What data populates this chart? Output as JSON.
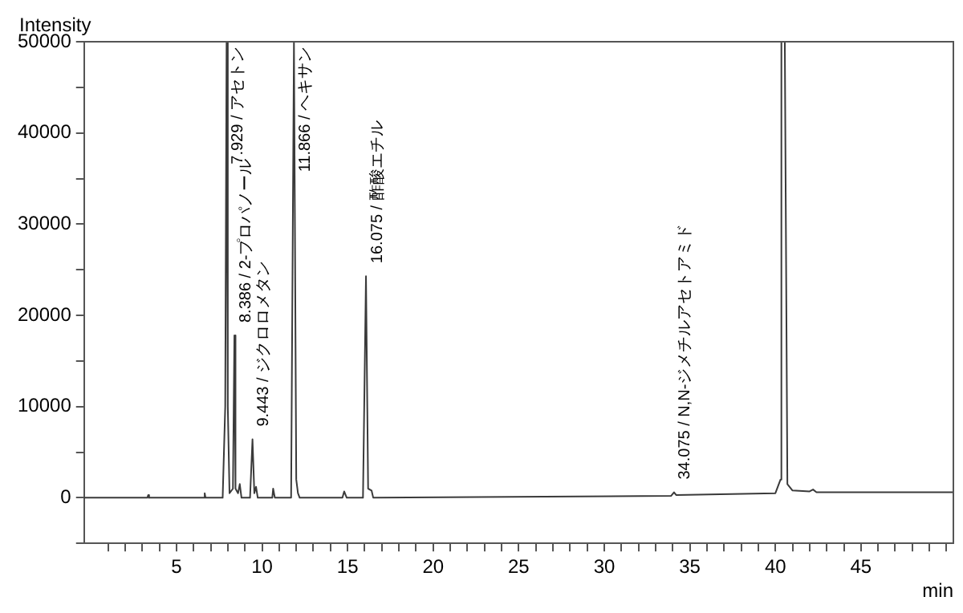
{
  "chart_data": {
    "type": "line",
    "xlabel": "min",
    "ylabel": "Intensity",
    "xlim": [
      -0.4,
      50.4
    ],
    "ylim": [
      -5000,
      50000
    ],
    "xticks": [
      {
        "value": 1,
        "label": null
      },
      {
        "value": 2,
        "label": null
      },
      {
        "value": 3,
        "label": null
      },
      {
        "value": 4,
        "label": null
      },
      5,
      {
        "value": 6,
        "label": null
      },
      {
        "value": 7,
        "label": null
      },
      {
        "value": 8,
        "label": null
      },
      {
        "value": 9,
        "label": null
      },
      10,
      {
        "value": 11,
        "label": null
      },
      {
        "value": 12,
        "label": null
      },
      {
        "value": 13,
        "label": null
      },
      {
        "value": 14,
        "label": null
      },
      15,
      {
        "value": 16,
        "label": null
      },
      {
        "value": 17,
        "label": null
      },
      {
        "value": 18,
        "label": null
      },
      {
        "value": 19,
        "label": null
      },
      20,
      {
        "value": 21,
        "label": null
      },
      {
        "value": 22,
        "label": null
      },
      {
        "value": 23,
        "label": null
      },
      {
        "value": 24,
        "label": null
      },
      25,
      {
        "value": 26,
        "label": null
      },
      {
        "value": 27,
        "label": null
      },
      {
        "value": 28,
        "label": null
      },
      {
        "value": 29,
        "label": null
      },
      30,
      {
        "value": 31,
        "label": null
      },
      {
        "value": 32,
        "label": null
      },
      {
        "value": 33,
        "label": null
      },
      {
        "value": 34,
        "label": null
      },
      35,
      {
        "value": 36,
        "label": null
      },
      {
        "value": 37,
        "label": null
      },
      {
        "value": 38,
        "label": null
      },
      {
        "value": 39,
        "label": null
      },
      40,
      {
        "value": 41,
        "label": null
      },
      {
        "value": 42,
        "label": null
      },
      {
        "value": 43,
        "label": null
      },
      {
        "value": 44,
        "label": null
      },
      45,
      {
        "value": 46,
        "label": null
      },
      {
        "value": 47,
        "label": null
      },
      {
        "value": 48,
        "label": null
      },
      {
        "value": 49,
        "label": null
      },
      {
        "value": 50,
        "label": null
      }
    ],
    "yticks": [
      {
        "value": -5000,
        "label": null
      },
      0,
      {
        "value": 5000,
        "label": null
      },
      10000,
      {
        "value": 15000,
        "label": null
      },
      20000,
      {
        "value": 25000,
        "label": null
      },
      30000,
      {
        "value": 35000,
        "label": null
      },
      40000,
      {
        "value": 45000,
        "label": null
      },
      50000
    ],
    "grid": false,
    "legend": false,
    "marker": "none",
    "line_style": "solid",
    "series": [
      {
        "color": "#3a3a3a",
        "x": [
          -0.4,
          3.3,
          3.35,
          3.4,
          6.6,
          6.65,
          6.7,
          7.7,
          7.85,
          7.929,
          8.0,
          8.1,
          8.3,
          8.386,
          8.45,
          8.6,
          8.7,
          8.8,
          9.3,
          9.443,
          9.55,
          9.65,
          9.75,
          10.6,
          10.65,
          10.75,
          11.7,
          11.866,
          12.0,
          12.1,
          12.2,
          14.7,
          14.8,
          14.95,
          15.9,
          16.075,
          16.2,
          16.4,
          16.5,
          33.9,
          34.075,
          34.2,
          40.0,
          40.3,
          40.35,
          40.55,
          40.7,
          41.0,
          42.0,
          42.2,
          42.4,
          50.4
        ],
        "values": [
          0,
          0,
          300,
          0,
          0,
          500,
          0,
          0,
          10000,
          50000,
          10000,
          500,
          1000,
          17800,
          1000,
          500,
          1500,
          0,
          0,
          6400,
          500,
          1200,
          0,
          0,
          1000,
          0,
          0,
          50000,
          2000,
          500,
          0,
          0,
          700,
          0,
          0,
          24300,
          1000,
          800,
          0,
          200,
          600,
          300,
          500,
          2000,
          50000,
          50000,
          1500,
          800,
          700,
          900,
          600,
          600
        ]
      }
    ],
    "annotations": [
      {
        "text": "7.929 / アセトン",
        "x": 7.929,
        "y": 50000
      },
      {
        "text": "8.386 / 2-プロパノール",
        "x": 8.386,
        "y": 17800
      },
      {
        "text": "9.443 / ジクロロメタン",
        "x": 9.443,
        "y": 6400
      },
      {
        "text": "11.866 / ヘキサン",
        "x": 11.866,
        "y": 50000
      },
      {
        "text": "16.075 / 酢酸エチル",
        "x": 16.075,
        "y": 24300
      },
      {
        "text": "34.075 / N,N-ジメチルアセトアミド",
        "x": 34.075,
        "y": 600
      }
    ]
  }
}
